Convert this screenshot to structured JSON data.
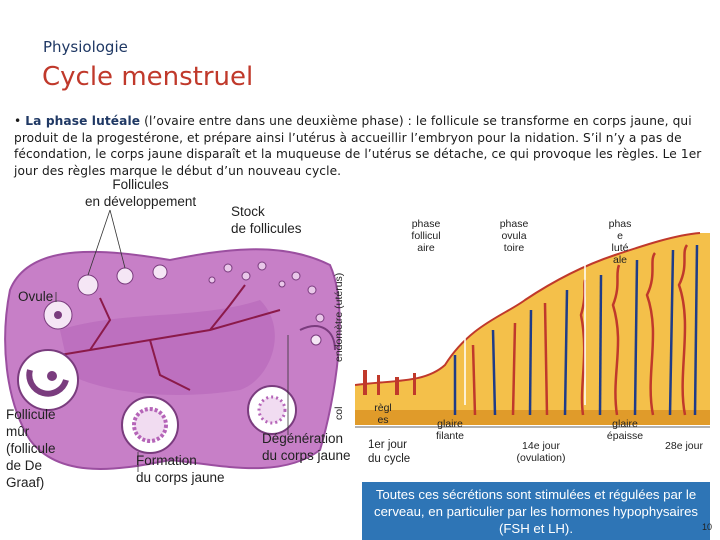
{
  "header": {
    "subject": "Physiologie",
    "title": "Cycle menstruel"
  },
  "text": {
    "bullet_marker": "•",
    "bullet_term": "La phase lutéale",
    "bullet_rest": "(l’ovaire entre dans une deuxième phase) : le follicule se transforme en corps jaune, qui produit de la progestérone, et prépare ainsi l’utérus à accueillir l’embryon pour la nidation. S’il n’y a pas de fécondation, le corps jaune disparaît et la muqueuse de l’utérus se détache, ce qui provoque les règles. Le 1er jour des règles marque le début d’un nouveau cycle."
  },
  "ovary_labels": {
    "follicules": "Follicules\nen développement",
    "stock": "Stock\nde follicules",
    "ovule": "Ovule",
    "follicule_mur": "Follicule\nmûr\n(follicule\nde De\nGraaf)",
    "formation": "Formation\ndu corps jaune",
    "degeneration": "Dégénération\ndu corps jaune"
  },
  "uterus_labels": {
    "endometre": "endomètre (utérus)",
    "col": "col",
    "phase_folliculaire": "phase\nfollicul\naire",
    "phase_ovulatoire": "phase\novula\ntoire",
    "phase_luteale": "phas\ne\nluté\nale",
    "regles": "règl\nes",
    "jour1": "1er jour\ndu cycle",
    "glaire_filante": "glaire\nfilante",
    "jour14": "14e jour\n(ovulation)",
    "glaire_epaisse": "glaire\népaisse",
    "jour28": "28e jour"
  },
  "callout": "Toutes ces sécrétions sont stimulées et régulées par le cerveau, en particulier par les hormones hypophysaires (FSH et LH).",
  "page_number": "10",
  "colors": {
    "ovary": "#c77fc7",
    "ovary_dark": "#9b4fa0",
    "uterus": "#f4c04a",
    "callout": "#2e75b6",
    "title": "#c0392b"
  }
}
